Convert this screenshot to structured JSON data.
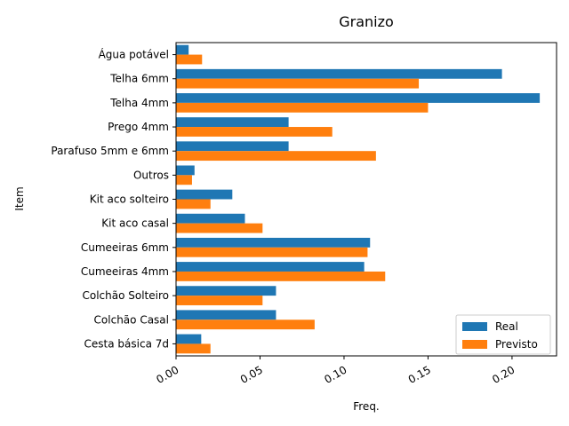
{
  "chart_data": {
    "type": "bar",
    "orientation": "horizontal",
    "title": "Granizo",
    "xlabel": "Freq.",
    "ylabel": "Item",
    "xlim": [
      0,
      0.2265
    ],
    "x_ticks": [
      0.0,
      0.05,
      0.1,
      0.15,
      0.2
    ],
    "x_tick_labels": [
      "0.00",
      "0.05",
      "0.10",
      "0.15",
      "0.20"
    ],
    "grid": false,
    "legend_position": "bottom-right",
    "categories": [
      "Água potável",
      "Telha 6mm",
      "Telha 4mm",
      "Prego 4mm",
      "Parafuso 5mm e 6mm",
      "Outros",
      "Kit aco solteiro",
      "Kit aco casal",
      "Cumeeiras 6mm",
      "Cumeeiras 4mm",
      "Colchão Solteiro",
      "Colchão Casal",
      "Cesta básica 7d"
    ],
    "series": [
      {
        "name": "Real",
        "color": "#1f77b4",
        "values": [
          0.0075,
          0.194,
          0.2165,
          0.067,
          0.067,
          0.011,
          0.0335,
          0.041,
          0.1155,
          0.112,
          0.0595,
          0.0595,
          0.015
        ]
      },
      {
        "name": "Previsto",
        "color": "#ff7f0e",
        "values": [
          0.0155,
          0.1445,
          0.15,
          0.093,
          0.119,
          0.0095,
          0.0205,
          0.0515,
          0.114,
          0.1245,
          0.0515,
          0.0825,
          0.0205
        ]
      }
    ]
  }
}
